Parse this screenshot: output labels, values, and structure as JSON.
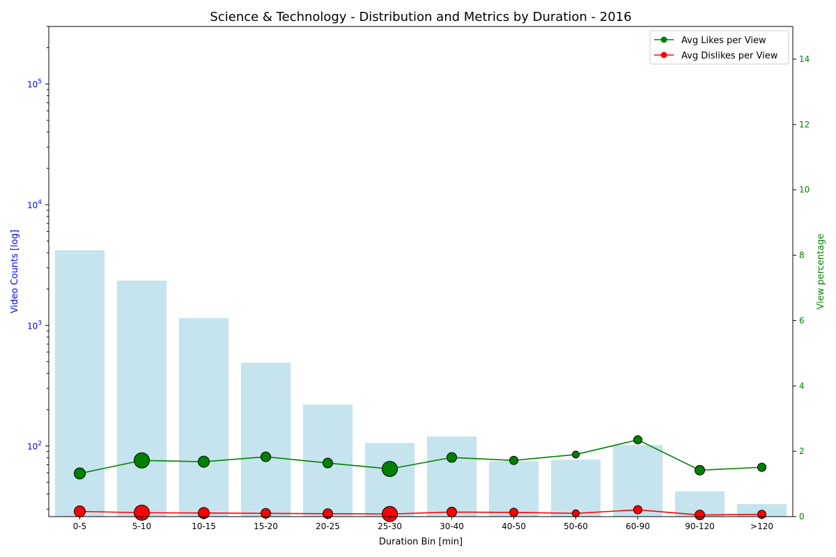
{
  "chart_data": {
    "type": "bar",
    "title": "Science & Technology - Distribution and Metrics by Duration - 2016",
    "xlabel": "Duration Bin [min]",
    "ylabel_left": "Video Counts [log]",
    "ylabel_right": "View percentage",
    "categories": [
      "0-5",
      "5-10",
      "10-15",
      "15-20",
      "20-25",
      "25-30",
      "30-40",
      "40-50",
      "50-60",
      "60-90",
      "90-120",
      ">120"
    ],
    "bar_series": {
      "name": "Video Counts",
      "color": "#add8e6",
      "values": [
        4200,
        2350,
        1150,
        490,
        220,
        106,
        120,
        75,
        77,
        102,
        42,
        33
      ]
    },
    "left_axis": {
      "scale": "log",
      "range": [
        26,
        300000
      ],
      "tick_labels": [
        "10^2",
        "10^3",
        "10^4",
        "10^5"
      ],
      "tick_values": [
        100,
        1000,
        10000,
        100000
      ],
      "color": "#0000ff"
    },
    "right_axis": {
      "scale": "linear",
      "range": [
        0,
        15
      ],
      "tick_values": [
        0,
        2,
        4,
        6,
        8,
        10,
        12,
        14
      ],
      "color": "#008000"
    },
    "line_series": [
      {
        "name": "Avg Likes per View",
        "color": "#008000",
        "values": [
          1.32,
          1.72,
          1.68,
          1.83,
          1.64,
          1.46,
          1.81,
          1.72,
          1.9,
          2.35,
          1.42,
          1.51
        ]
      },
      {
        "name": "Avg Dislikes per View",
        "color": "#ff0000",
        "values": [
          0.16,
          0.12,
          0.11,
          0.1,
          0.09,
          0.08,
          0.14,
          0.13,
          0.1,
          0.21,
          0.05,
          0.07
        ]
      }
    ],
    "marker_sizes": [
      8,
      11,
      8,
      7,
      7,
      11,
      7,
      6,
      5,
      6,
      7,
      6
    ],
    "legend": {
      "placement": "top-right",
      "entries": [
        "Avg Likes per View",
        "Avg Dislikes per View"
      ]
    },
    "grid": false
  }
}
